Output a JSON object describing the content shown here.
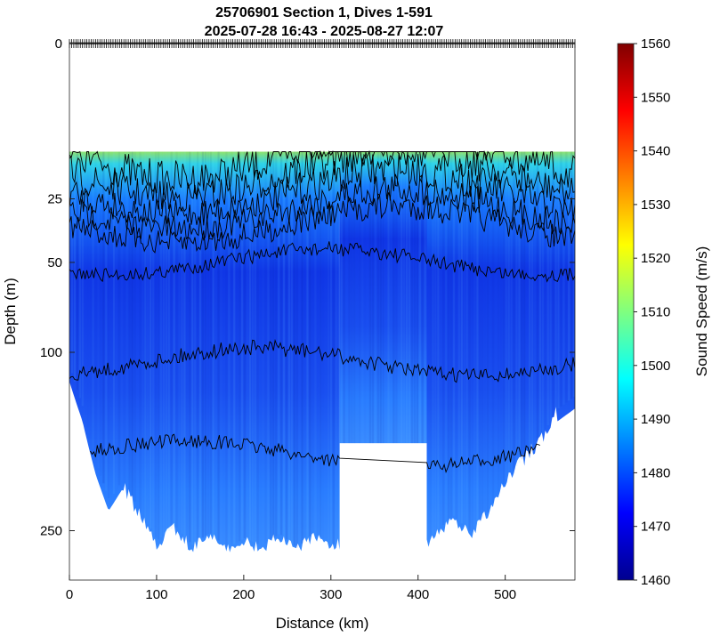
{
  "chart_data": {
    "type": "heatmap",
    "title": "25706901 Section 1, Dives 1-591",
    "subtitle": "2025-07-28 16:43 - 2025-08-27 12:07",
    "xlabel": "Distance (km)",
    "ylabel": "Depth (m)",
    "xlim": [
      0,
      580
    ],
    "x_ticks": [
      0,
      100,
      200,
      300,
      400,
      500
    ],
    "y_ticks": [
      0,
      25,
      50,
      100,
      250
    ],
    "y_scale": "sqrt",
    "colorbar": {
      "label": "Sound Speed (m/s)",
      "range": [
        1460,
        1560
      ],
      "ticks": [
        1460,
        1470,
        1480,
        1490,
        1500,
        1510,
        1520,
        1530,
        1540,
        1550,
        1560
      ],
      "colormap": "jet"
    },
    "data_top_depth": 12,
    "gap": {
      "x": [
        310,
        410
      ],
      "depth_below": 168
    },
    "profile_bottom_depth": [
      [
        0,
        120
      ],
      [
        15,
        150
      ],
      [
        30,
        195
      ],
      [
        45,
        230
      ],
      [
        60,
        210
      ],
      [
        80,
        240
      ],
      [
        100,
        270
      ],
      [
        120,
        255
      ],
      [
        140,
        275
      ],
      [
        160,
        262
      ],
      [
        180,
        278
      ],
      [
        200,
        268
      ],
      [
        220,
        276
      ],
      [
        240,
        263
      ],
      [
        260,
        278
      ],
      [
        280,
        262
      ],
      [
        300,
        275
      ],
      [
        310,
        270
      ],
      [
        410,
        270
      ],
      [
        420,
        260
      ],
      [
        440,
        245
      ],
      [
        460,
        262
      ],
      [
        480,
        240
      ],
      [
        500,
        210
      ],
      [
        520,
        190
      ],
      [
        540,
        172
      ],
      [
        560,
        150
      ],
      [
        580,
        140
      ]
    ],
    "isolines": [
      {
        "name": "near-surface",
        "depth_range": [
          12,
          40
        ]
      },
      {
        "name": "upper",
        "depth_range": [
          38,
          62
        ]
      },
      {
        "name": "middle",
        "depth_range": [
          88,
          125
        ]
      },
      {
        "name": "lower",
        "depth_range": [
          155,
          200
        ]
      }
    ]
  }
}
